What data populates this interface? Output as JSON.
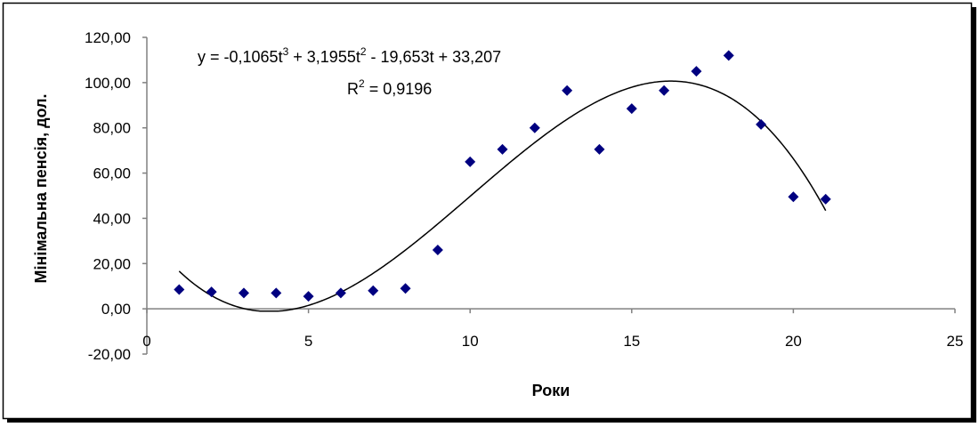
{
  "chart_data": {
    "type": "scatter",
    "xlabel": "Роки",
    "ylabel": "Мінімальна пенсія, дол.",
    "xlim": [
      0,
      25
    ],
    "ylim": [
      -20,
      120
    ],
    "x_ticks": [
      "0",
      "5",
      "10",
      "15",
      "20",
      "25"
    ],
    "y_ticks": [
      "-20,00",
      "0,00",
      "20,00",
      "40,00",
      "60,00",
      "80,00",
      "100,00",
      "120,00"
    ],
    "grid": false,
    "legend": "none",
    "colors": {
      "points": "#000080",
      "trend": "#000000",
      "axes": "#808080",
      "frame": "#000000"
    },
    "series": [
      {
        "x": [
          1,
          2,
          3,
          4,
          5,
          6,
          7,
          8,
          9,
          10,
          11,
          12,
          13,
          14,
          15,
          16,
          17,
          18,
          19,
          20,
          21
        ],
        "y": [
          8.5,
          7.5,
          7.0,
          7.0,
          5.5,
          7.0,
          8.0,
          9.0,
          26.0,
          65.0,
          70.5,
          80.0,
          96.5,
          70.5,
          88.5,
          96.5,
          105.0,
          112.0,
          81.5,
          49.5,
          48.5
        ]
      }
    ],
    "trendline": {
      "type": "polynomial",
      "coefficients": [
        33.207,
        -19.653,
        3.1955,
        -0.1065
      ],
      "x_range": [
        1,
        21
      ],
      "floor": -1,
      "equation": {
        "lhs": "y = -0,1065t",
        "sup1": "3",
        "mid": " + 3,1955t",
        "sup2": "2",
        "rhs": " - 19,653t + 33,207"
      },
      "r2": {
        "lhs": "R",
        "sup": "2",
        "rhs": " = 0,9196"
      }
    }
  }
}
